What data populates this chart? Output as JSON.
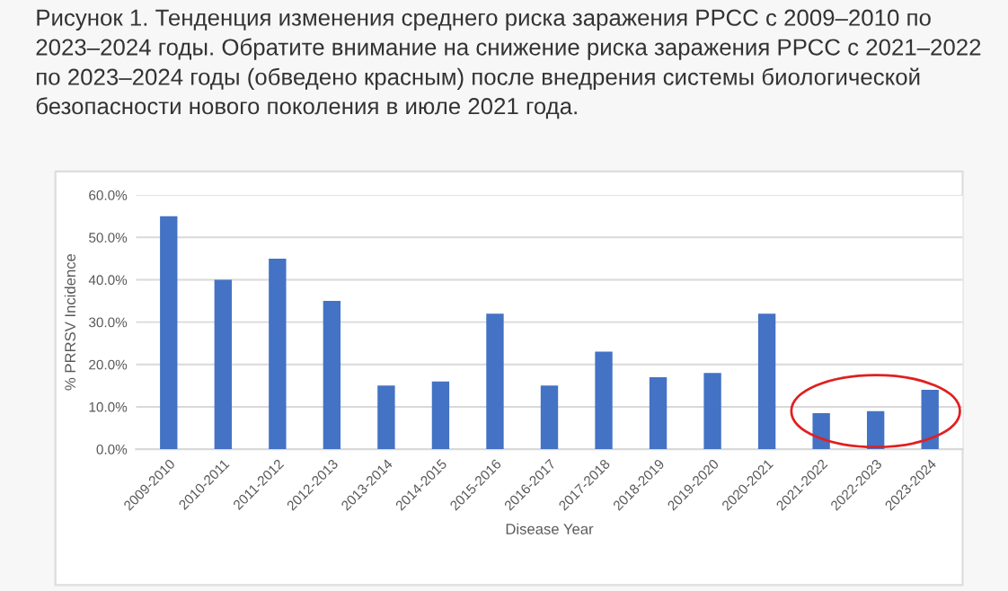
{
  "chart_data": {
    "type": "bar",
    "title": "Рисунок 1. Тенденция изменения среднего риска заражения РРСС с 2009–2010 по 2023–2024 годы. Обратите внимание на снижение риска заражения РРСС с 2021–2022 по 2023–2024 годы (обведено красным) после внедрения системы биологической безопасности нового поколения в июле 2021 года.",
    "xlabel": "Disease Year",
    "ylabel": "% PRRSV Incidence",
    "categories": [
      "2009-2010",
      "2010-2011",
      "2011-2012",
      "2012-2013",
      "2013-2014",
      "2014-2015",
      "2015-2016",
      "2016-2017",
      "2017-2018",
      "2018-2019",
      "2019-2020",
      "2020-2021",
      "2021-2022",
      "2022-2023",
      "2023-2024"
    ],
    "values": [
      55,
      40,
      45,
      35,
      15,
      16,
      32,
      15,
      23,
      17,
      18,
      32,
      8.5,
      9,
      14
    ],
    "color": "#4472c4",
    "ylim": [
      0,
      60
    ],
    "yticks": [
      {
        "value": 0,
        "label": "0.0%"
      },
      {
        "value": 10,
        "label": "10.0%"
      },
      {
        "value": 20,
        "label": "20.0%"
      },
      {
        "value": 30,
        "label": "30.0%"
      },
      {
        "value": 40,
        "label": "40.0%"
      },
      {
        "value": 50,
        "label": "50.0%"
      },
      {
        "value": 60,
        "label": "60.0%"
      }
    ],
    "grid": "y"
  }
}
